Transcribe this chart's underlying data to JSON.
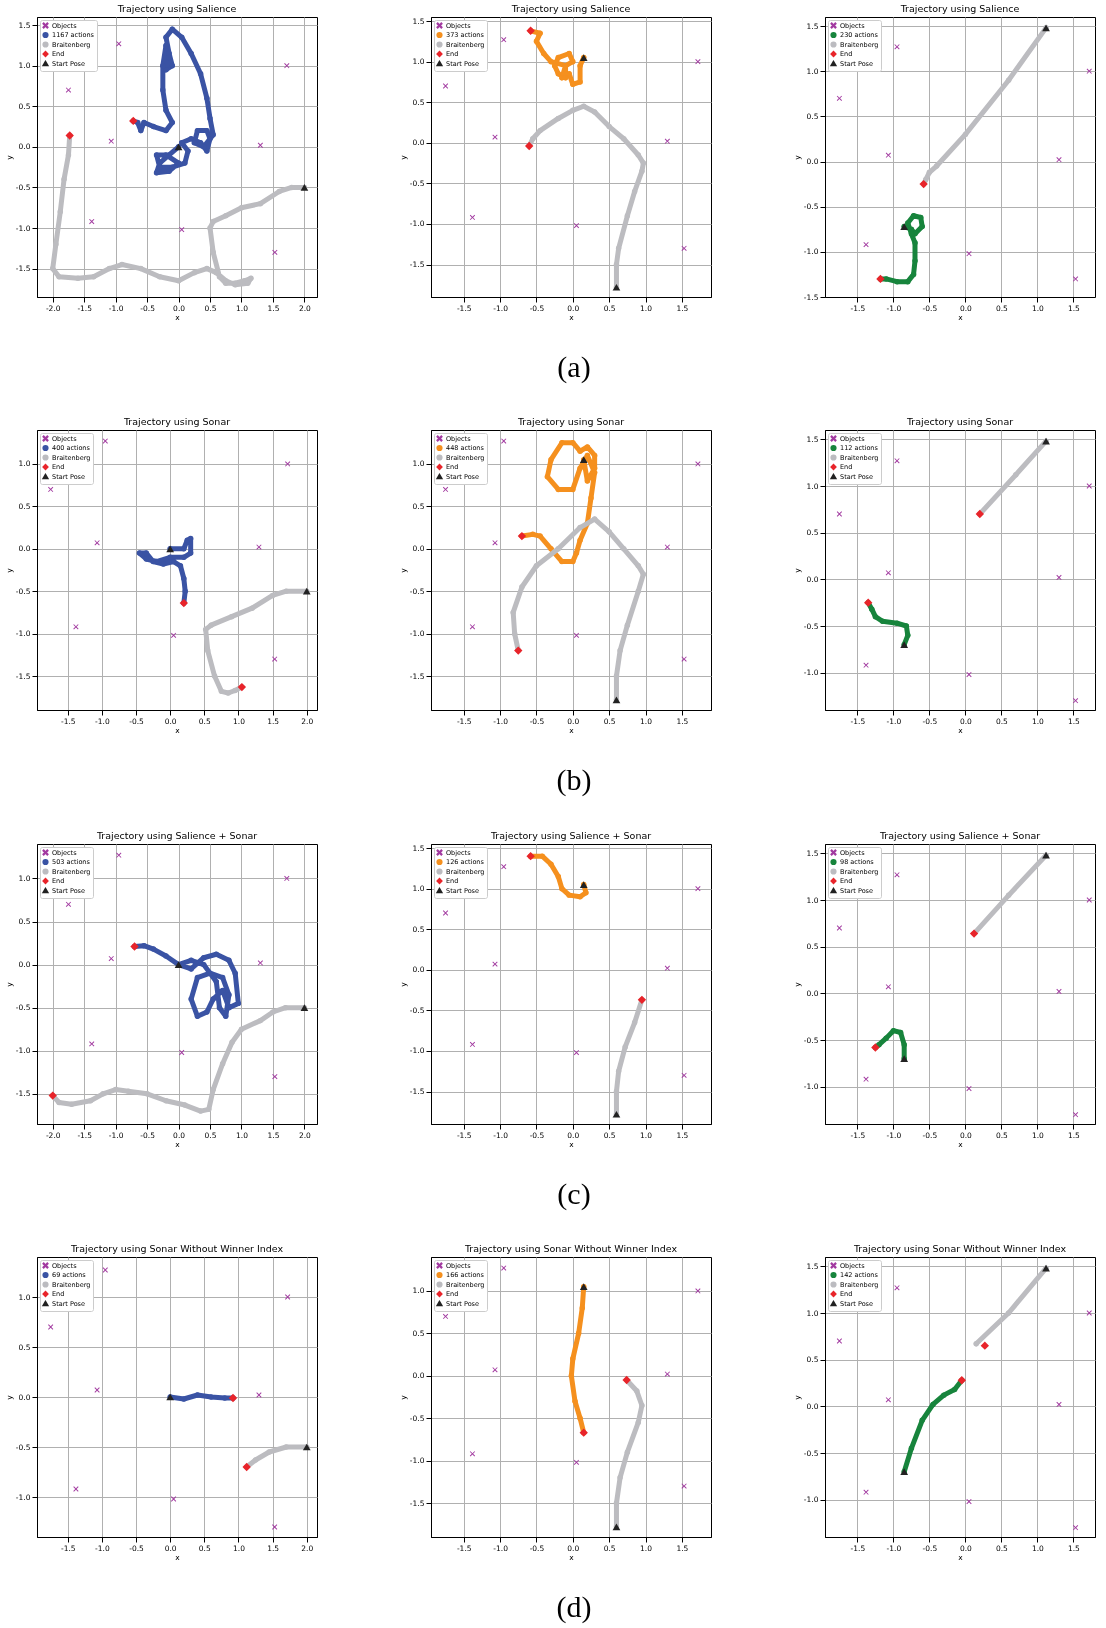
{
  "chart_data": [
    {
      "type": "scatter",
      "title": "Trajectory using Salience",
      "xlabel": "x",
      "ylabel": "y",
      "grid": true,
      "legend": "top left",
      "xlim": [
        -2.25,
        2.2
      ],
      "ylim": [
        -1.85,
        1.6
      ],
      "xticks": [
        {
          "value": -2,
          "label": "-2.0"
        },
        -1.5,
        {
          "value": -1,
          "label": "-1.0"
        },
        -0.5,
        {
          "value": 0,
          "label": "0.0"
        },
        0.5,
        {
          "value": 1,
          "label": "1.0"
        },
        1.5,
        {
          "value": 2,
          "label": "2.0"
        }
      ],
      "yticks": [
        -1.5,
        {
          "value": -1,
          "label": "-1.0"
        },
        -0.5,
        {
          "value": 0,
          "label": "0.0"
        },
        0.5,
        {
          "value": 1,
          "label": "1.0"
        },
        1.5
      ],
      "series": [
        {
          "name": "Objects",
          "type": "scatter",
          "marker": "cross",
          "color": "#a23aa0",
          "x": [
            -1.75,
            -0.95,
            -1.07,
            -1.38,
            0.05,
            1.3,
            1.72,
            1.53
          ],
          "values": [
            0.7,
            1.27,
            0.07,
            -0.92,
            -1.02,
            0.02,
            1.0,
            -1.3
          ]
        },
        {
          "name": "1167 actions",
          "type": "line",
          "color": "#3a53a4",
          "x": [
            0,
            -0.15,
            -0.3,
            -0.35,
            -0.15,
            0,
            -0.2,
            -0.35,
            -0.3,
            -0.1,
            0.1,
            0.15,
            0.05,
            0.2,
            0.35,
            0.45,
            0.5,
            0.45,
            0.3,
            0.25,
            0.4,
            0.55,
            0.5,
            0.45,
            0.35,
            0.2,
            0.05,
            -0.1,
            -0.2,
            -0.15,
            -0.1,
            -0.2,
            -0.15,
            -0.2,
            -0.25,
            -0.25,
            -0.2,
            -0.1,
            -0.2,
            -0.4,
            -0.55,
            -0.6,
            -0.65,
            -0.72
          ],
          "values": [
            0,
            -0.1,
            -0.2,
            -0.32,
            -0.3,
            -0.2,
            -0.1,
            -0.1,
            -0.25,
            -0.25,
            -0.2,
            -0.05,
            0.05,
            0.1,
            0.05,
            -0.05,
            0.1,
            0.2,
            0.2,
            0.05,
            0,
            0.15,
            0.35,
            0.6,
            0.9,
            1.15,
            1.35,
            1.45,
            1.35,
            1.15,
            1.0,
            0.95,
            1.1,
            1.25,
            1.0,
            0.7,
            0.45,
            0.3,
            0.2,
            0.25,
            0.3,
            0.2,
            0.3,
            0.32
          ]
        },
        {
          "name": "Braitenberg",
          "type": "line",
          "color": "#bcbcc0",
          "x": [
            2,
            1.8,
            1.6,
            1.3,
            1.0,
            0.75,
            0.55,
            0.5,
            0.55,
            0.65,
            0.75,
            0.9,
            1.05,
            1.15,
            1.1,
            0.9,
            0.75,
            0.6,
            0.45,
            0.25,
            0,
            -0.3,
            -0.6,
            -0.9,
            -1.1,
            -1.35,
            -1.6,
            -1.9,
            -2.0,
            -1.95,
            -1.88,
            -1.82,
            -1.75,
            -1.73
          ],
          "values": [
            -0.5,
            -0.5,
            -0.55,
            -0.7,
            -0.75,
            -0.85,
            -0.92,
            -1.0,
            -1.3,
            -1.6,
            -1.68,
            -1.68,
            -1.65,
            -1.62,
            -1.68,
            -1.7,
            -1.65,
            -1.55,
            -1.5,
            -1.55,
            -1.65,
            -1.6,
            -1.5,
            -1.45,
            -1.5,
            -1.6,
            -1.62,
            -1.6,
            -1.5,
            -1.2,
            -0.8,
            -0.4,
            -0.1,
            0.14
          ]
        },
        {
          "name": "End",
          "type": "scatter",
          "marker": "diamond",
          "color": "#e8242a",
          "x": [
            -0.72,
            -1.73
          ],
          "values": [
            0.32,
            0.14
          ]
        },
        {
          "name": "Start Pose",
          "type": "scatter",
          "marker": "triangle",
          "color": "#222222",
          "x": [
            0,
            2
          ],
          "values": [
            0,
            -0.5
          ]
        }
      ]
    },
    {
      "type": "scatter",
      "title": "Trajectory using Salience",
      "xlabel": "x",
      "ylabel": "y",
      "grid": true,
      "legend": "top left",
      "xlim": [
        -1.95,
        1.9
      ],
      "ylim": [
        -1.9,
        1.55
      ],
      "xticks": [
        -1.5,
        {
          "value": -1,
          "label": "-1.0"
        },
        -0.5,
        {
          "value": 0,
          "label": "0.0"
        },
        0.5,
        {
          "value": 1,
          "label": "1.0"
        },
        1.5
      ],
      "yticks": [
        -1.5,
        {
          "value": -1,
          "label": "-1.0"
        },
        -0.5,
        {
          "value": 0,
          "label": "0.0"
        },
        0.5,
        {
          "value": 1,
          "label": "1.0"
        },
        1.5
      ],
      "annotations": [
        "(a)"
      ],
      "series": [
        {
          "name": "Objects",
          "type": "scatter",
          "marker": "cross",
          "color": "#a23aa0",
          "x": [
            -1.75,
            -0.95,
            -1.07,
            -1.38,
            0.05,
            1.3,
            1.72,
            1.53
          ],
          "values": [
            0.7,
            1.27,
            0.07,
            -0.92,
            -1.02,
            0.02,
            1.0,
            -1.3
          ]
        },
        {
          "name": "373 actions",
          "type": "line",
          "color": "#f5901e",
          "x": [
            0.15,
            0.1,
            0.1,
            0,
            -0.05,
            -0.15,
            -0.1,
            0,
            -0.05,
            -0.2,
            -0.25,
            -0.2,
            -0.1,
            -0.1,
            -0.3,
            -0.4,
            -0.5,
            -0.45,
            -0.58
          ],
          "values": [
            1.05,
            0.95,
            0.75,
            0.72,
            0.85,
            0.8,
            0.95,
            1.0,
            1.1,
            1.05,
            0.95,
            0.85,
            0.8,
            0.95,
            1.0,
            1.1,
            1.25,
            1.35,
            1.38
          ]
        },
        {
          "name": "Braitenberg",
          "type": "line",
          "color": "#bcbcc0",
          "x": [
            0.6,
            0.6,
            0.63,
            0.75,
            0.85,
            0.95,
            0.97,
            0.9,
            0.7,
            0.5,
            0.3,
            0.15,
            0,
            -0.2,
            -0.45,
            -0.55,
            -0.6
          ],
          "values": [
            -1.78,
            -1.5,
            -1.3,
            -0.9,
            -0.6,
            -0.35,
            -0.25,
            -0.15,
            0.05,
            0.2,
            0.38,
            0.45,
            0.4,
            0.3,
            0.15,
            0.05,
            -0.04
          ]
        },
        {
          "name": "End",
          "type": "scatter",
          "marker": "diamond",
          "color": "#e8242a",
          "x": [
            -0.58,
            -0.6
          ],
          "values": [
            1.38,
            -0.04
          ]
        },
        {
          "name": "Start Pose",
          "type": "scatter",
          "marker": "triangle",
          "color": "#222222",
          "x": [
            0.15,
            0.6
          ],
          "values": [
            1.05,
            -1.78
          ]
        }
      ]
    },
    {
      "type": "scatter",
      "title": "Trajectory using Salience",
      "xlabel": "x",
      "ylabel": "y",
      "grid": true,
      "legend": "top left",
      "xlim": [
        -1.95,
        1.8
      ],
      "ylim": [
        -1.5,
        1.6
      ],
      "xticks": [
        -1.5,
        {
          "value": -1,
          "label": "-1.0"
        },
        -0.5,
        {
          "value": 0,
          "label": "0.0"
        },
        0.5,
        {
          "value": 1,
          "label": "1.0"
        },
        1.5
      ],
      "yticks": [
        -1.5,
        {
          "value": -1,
          "label": "-1.0"
        },
        -0.5,
        {
          "value": 0,
          "label": "0.0"
        },
        0.5,
        {
          "value": 1,
          "label": "1.0"
        },
        1.5
      ],
      "series": [
        {
          "name": "Objects",
          "type": "scatter",
          "marker": "cross",
          "color": "#a23aa0",
          "x": [
            -1.75,
            -0.95,
            -1.07,
            -1.38,
            0.05,
            1.3,
            1.72,
            1.53
          ],
          "values": [
            0.7,
            1.27,
            0.07,
            -0.92,
            -1.02,
            0.02,
            1.0,
            -1.3
          ]
        },
        {
          "name": "230 actions",
          "type": "line",
          "color": "#17843c",
          "x": [
            -0.85,
            -0.75,
            -0.7,
            -0.6,
            -0.62,
            -0.72,
            -0.8,
            -0.75,
            -0.7,
            -0.7,
            -0.72,
            -0.8,
            -0.95,
            -1.1,
            -1.18
          ],
          "values": [
            -0.72,
            -0.75,
            -0.8,
            -0.72,
            -0.62,
            -0.6,
            -0.68,
            -0.8,
            -0.9,
            -1.1,
            -1.25,
            -1.33,
            -1.33,
            -1.3,
            -1.3
          ]
        },
        {
          "name": "Braitenberg",
          "type": "line",
          "color": "#bcbcc0",
          "x": [
            1.12,
            0.6,
            0,
            -0.4,
            -0.5,
            -0.55,
            -0.58
          ],
          "values": [
            1.48,
            0.9,
            0.3,
            -0.05,
            -0.12,
            -0.2,
            -0.25
          ]
        },
        {
          "name": "End",
          "type": "scatter",
          "marker": "diamond",
          "color": "#e8242a",
          "x": [
            -1.18,
            -0.58
          ],
          "values": [
            -1.3,
            -0.25
          ]
        },
        {
          "name": "Start Pose",
          "type": "scatter",
          "marker": "triangle",
          "color": "#222222",
          "x": [
            -0.85,
            1.12
          ],
          "values": [
            -0.72,
            1.48
          ]
        }
      ]
    },
    {
      "type": "scatter",
      "title": "Trajectory using Sonar",
      "xlabel": "x",
      "ylabel": "y",
      "grid": true,
      "legend": "top left",
      "xlim": [
        -1.95,
        2.15
      ],
      "ylim": [
        -1.9,
        1.4
      ],
      "xticks": [
        -1.5,
        {
          "value": -1,
          "label": "-1.0"
        },
        -0.5,
        {
          "value": 0,
          "label": "0.0"
        },
        0.5,
        {
          "value": 1,
          "label": "1.0"
        },
        1.5,
        {
          "value": 2,
          "label": "2.0"
        }
      ],
      "yticks": [
        -1.5,
        {
          "value": -1,
          "label": "-1.0"
        },
        -0.5,
        {
          "value": 0,
          "label": "0.0"
        },
        0.5,
        {
          "value": 1,
          "label": "1.0"
        }
      ],
      "series": [
        {
          "name": "Objects",
          "type": "scatter",
          "marker": "cross",
          "color": "#a23aa0",
          "x": [
            -1.75,
            -0.95,
            -1.07,
            -1.38,
            0.05,
            1.3,
            1.72,
            1.53
          ],
          "values": [
            0.7,
            1.27,
            0.07,
            -0.92,
            -1.02,
            0.02,
            1.0,
            -1.3
          ]
        },
        {
          "name": "400 actions",
          "type": "line",
          "color": "#3a53a4",
          "x": [
            0,
            0.2,
            0.25,
            0.3,
            0.3,
            0.2,
            0,
            -0.2,
            -0.35,
            -0.45,
            -0.35,
            -0.25,
            -0.1,
            0.05,
            0.15,
            0.2,
            0.22,
            0.2
          ],
          "values": [
            0,
            0,
            0.1,
            0.12,
            -0.05,
            -0.1,
            -0.1,
            -0.15,
            -0.12,
            -0.05,
            -0.05,
            -0.15,
            -0.18,
            -0.15,
            -0.2,
            -0.35,
            -0.5,
            -0.64
          ]
        },
        {
          "name": "Braitenberg",
          "type": "line",
          "color": "#bcbcc0",
          "x": [
            2,
            1.7,
            1.5,
            1.2,
            0.9,
            0.6,
            0.52,
            0.55,
            0.65,
            0.75,
            0.85,
            0.95,
            1.05
          ],
          "values": [
            -0.5,
            -0.5,
            -0.55,
            -0.7,
            -0.8,
            -0.9,
            -0.95,
            -1.2,
            -1.5,
            -1.68,
            -1.7,
            -1.67,
            -1.63
          ]
        },
        {
          "name": "End",
          "type": "scatter",
          "marker": "diamond",
          "color": "#e8242a",
          "x": [
            0.2,
            1.05
          ],
          "values": [
            -0.64,
            -1.63
          ]
        },
        {
          "name": "Start Pose",
          "type": "scatter",
          "marker": "triangle",
          "color": "#222222",
          "x": [
            0,
            2
          ],
          "values": [
            0,
            -0.5
          ]
        }
      ]
    },
    {
      "type": "scatter",
      "title": "Trajectory using Sonar",
      "xlabel": "x",
      "ylabel": "y",
      "grid": true,
      "legend": "top left",
      "xlim": [
        -1.95,
        1.9
      ],
      "ylim": [
        -1.9,
        1.4
      ],
      "xticks": [
        -1.5,
        {
          "value": -1,
          "label": "-1.0"
        },
        -0.5,
        {
          "value": 0,
          "label": "0.0"
        },
        0.5,
        {
          "value": 1,
          "label": "1.0"
        },
        1.5
      ],
      "yticks": [
        -1.5,
        {
          "value": -1,
          "label": "-1.0"
        },
        -0.5,
        {
          "value": 0,
          "label": "0.0"
        },
        0.5,
        {
          "value": 1,
          "label": "1.0"
        }
      ],
      "annotations": [
        "(b)"
      ],
      "series": [
        {
          "name": "Objects",
          "type": "scatter",
          "marker": "cross",
          "color": "#a23aa0",
          "x": [
            -1.75,
            -0.95,
            -1.07,
            -1.38,
            0.05,
            1.3,
            1.72,
            1.53
          ],
          "values": [
            0.7,
            1.27,
            0.07,
            -0.92,
            -1.02,
            0.02,
            1.0,
            -1.3
          ]
        },
        {
          "name": "448 actions",
          "type": "line",
          "color": "#f5901e",
          "x": [
            0.15,
            0.2,
            0.3,
            0.3,
            0.2,
            0.1,
            0,
            -0.15,
            -0.3,
            -0.35,
            -0.2,
            0,
            0.1,
            0.2,
            0.3,
            0.25,
            0.2,
            0.1,
            0.05,
            0,
            -0.15,
            -0.3,
            -0.45,
            -0.55,
            -0.7
          ],
          "values": [
            1.05,
            0.8,
            0.95,
            1.1,
            1.2,
            1.15,
            1.25,
            1.25,
            1.05,
            0.85,
            0.7,
            0.7,
            0.95,
            1.1,
            0.9,
            0.6,
            0.3,
            0.1,
            -0.05,
            -0.15,
            -0.15,
            0,
            0.15,
            0.17,
            0.15
          ]
        },
        {
          "name": "Braitenberg",
          "type": "line",
          "color": "#bcbcc0",
          "x": [
            0.6,
            0.6,
            0.65,
            0.75,
            0.9,
            0.97,
            0.9,
            0.7,
            0.5,
            0.3,
            0.1,
            -0.2,
            -0.5,
            -0.7,
            -0.82,
            -0.8,
            -0.75
          ],
          "values": [
            -1.78,
            -1.5,
            -1.2,
            -0.9,
            -0.5,
            -0.3,
            -0.2,
            0,
            0.2,
            0.35,
            0.25,
            0,
            -0.2,
            -0.45,
            -0.75,
            -1.0,
            -1.2
          ]
        },
        {
          "name": "End",
          "type": "scatter",
          "marker": "diamond",
          "color": "#e8242a",
          "x": [
            -0.7,
            -0.75
          ],
          "values": [
            0.15,
            -1.2
          ]
        },
        {
          "name": "Start Pose",
          "type": "scatter",
          "marker": "triangle",
          "color": "#222222",
          "x": [
            0.15,
            0.6
          ],
          "values": [
            1.05,
            -1.78
          ]
        }
      ]
    },
    {
      "type": "scatter",
      "title": "Trajectory using Sonar",
      "xlabel": "x",
      "ylabel": "y",
      "grid": true,
      "legend": "top left",
      "xlim": [
        -1.95,
        1.8
      ],
      "ylim": [
        -1.4,
        1.6
      ],
      "xticks": [
        -1.5,
        {
          "value": -1,
          "label": "-1.0"
        },
        -0.5,
        {
          "value": 0,
          "label": "0.0"
        },
        0.5,
        {
          "value": 1,
          "label": "1.0"
        },
        1.5
      ],
      "yticks": [
        {
          "value": -1,
          "label": "-1.0"
        },
        -0.5,
        {
          "value": 0,
          "label": "0.0"
        },
        0.5,
        {
          "value": 1,
          "label": "1.0"
        },
        1.5
      ],
      "series": [
        {
          "name": "Objects",
          "type": "scatter",
          "marker": "cross",
          "color": "#a23aa0",
          "x": [
            -1.75,
            -0.95,
            -1.07,
            -1.38,
            0.05,
            1.3,
            1.72,
            1.53
          ],
          "values": [
            0.7,
            1.27,
            0.07,
            -0.92,
            -1.02,
            0.02,
            1.0,
            -1.3
          ]
        },
        {
          "name": "112 actions",
          "type": "line",
          "color": "#17843c",
          "x": [
            -0.85,
            -0.8,
            -0.82,
            -0.95,
            -1.15,
            -1.25,
            -1.3,
            -1.35
          ],
          "values": [
            -0.7,
            -0.6,
            -0.5,
            -0.47,
            -0.45,
            -0.4,
            -0.32,
            -0.25
          ]
        },
        {
          "name": "Braitenberg",
          "type": "line",
          "color": "#bcbcc0",
          "x": [
            1.12,
            0.7,
            0.2
          ],
          "values": [
            1.48,
            1.12,
            0.7
          ]
        },
        {
          "name": "End",
          "type": "scatter",
          "marker": "diamond",
          "color": "#e8242a",
          "x": [
            -1.35,
            0.2
          ],
          "values": [
            -0.25,
            0.7
          ]
        },
        {
          "name": "Start Pose",
          "type": "scatter",
          "marker": "triangle",
          "color": "#222222",
          "x": [
            -0.85,
            1.12
          ],
          "values": [
            -0.7,
            1.48
          ]
        }
      ]
    },
    {
      "type": "scatter",
      "title": "Trajectory using Salience + Sonar",
      "xlabel": "x",
      "ylabel": "y",
      "grid": true,
      "legend": "top left",
      "xlim": [
        -2.25,
        2.2
      ],
      "ylim": [
        -1.85,
        1.4
      ],
      "xticks": [
        {
          "value": -2,
          "label": "-2.0"
        },
        -1.5,
        {
          "value": -1,
          "label": "-1.0"
        },
        -0.5,
        {
          "value": 0,
          "label": "0.0"
        },
        0.5,
        {
          "value": 1,
          "label": "1.0"
        },
        1.5,
        {
          "value": 2,
          "label": "2.0"
        }
      ],
      "yticks": [
        -1.5,
        {
          "value": -1,
          "label": "-1.0"
        },
        -0.5,
        {
          "value": 0,
          "label": "0.0"
        },
        0.5,
        {
          "value": 1,
          "label": "1.0"
        }
      ],
      "series": [
        {
          "name": "Objects",
          "type": "scatter",
          "marker": "cross",
          "color": "#a23aa0",
          "x": [
            -1.75,
            -0.95,
            -1.07,
            -1.38,
            0.05,
            1.3,
            1.72,
            1.53
          ],
          "values": [
            0.7,
            1.27,
            0.07,
            -0.92,
            -1.02,
            0.02,
            1.0,
            -1.3
          ]
        },
        {
          "name": "503 actions",
          "type": "line",
          "color": "#3a53a4",
          "x": [
            0,
            0.2,
            0.4,
            0.6,
            0.8,
            0.9,
            0.95,
            0.8,
            0.7,
            0.55,
            0.45,
            0.3,
            0.2,
            0.3,
            0.5,
            0.7,
            0.8,
            0.75,
            0.65,
            0.6,
            0.4,
            0.2,
            0,
            -0.2,
            -0.4,
            -0.55,
            -0.7
          ],
          "values": [
            0,
            -0.05,
            0.08,
            0.12,
            0.05,
            -0.1,
            -0.45,
            -0.5,
            -0.3,
            -0.4,
            -0.55,
            -0.6,
            -0.4,
            -0.15,
            -0.1,
            -0.15,
            -0.35,
            -0.6,
            -0.5,
            -0.2,
            0,
            0.05,
            0,
            0.1,
            0.18,
            0.22,
            0.21
          ]
        },
        {
          "name": "Braitenberg",
          "type": "line",
          "color": "#bcbcc0",
          "x": [
            2,
            1.7,
            1.5,
            1.3,
            1.0,
            0.85,
            0.7,
            0.55,
            0.48,
            0.35,
            0.1,
            -0.2,
            -0.5,
            -0.8,
            -1.0,
            -1.2,
            -1.4,
            -1.7,
            -1.9,
            -2.0
          ],
          "values": [
            -0.5,
            -0.5,
            -0.55,
            -0.65,
            -0.75,
            -0.9,
            -1.15,
            -1.45,
            -1.68,
            -1.7,
            -1.63,
            -1.58,
            -1.5,
            -1.47,
            -1.45,
            -1.5,
            -1.58,
            -1.62,
            -1.6,
            -1.52
          ]
        },
        {
          "name": "End",
          "type": "scatter",
          "marker": "diamond",
          "color": "#e8242a",
          "x": [
            -0.7,
            -2.0
          ],
          "values": [
            0.21,
            -1.52
          ]
        },
        {
          "name": "Start Pose",
          "type": "scatter",
          "marker": "triangle",
          "color": "#222222",
          "x": [
            0,
            2
          ],
          "values": [
            0,
            -0.5
          ]
        }
      ]
    },
    {
      "type": "scatter",
      "title": "Trajectory using Salience + Sonar",
      "xlabel": "x",
      "ylabel": "y",
      "grid": true,
      "legend": "top left",
      "xlim": [
        -1.95,
        1.9
      ],
      "ylim": [
        -1.9,
        1.55
      ],
      "xticks": [
        -1.5,
        {
          "value": -1,
          "label": "-1.0"
        },
        -0.5,
        {
          "value": 0,
          "label": "0.0"
        },
        0.5,
        {
          "value": 1,
          "label": "1.0"
        },
        1.5
      ],
      "yticks": [
        -1.5,
        {
          "value": -1,
          "label": "-1.0"
        },
        -0.5,
        {
          "value": 0,
          "label": "0.0"
        },
        0.5,
        {
          "value": 1,
          "label": "1.0"
        },
        1.5
      ],
      "annotations": [
        "(c)"
      ],
      "series": [
        {
          "name": "Objects",
          "type": "scatter",
          "marker": "cross",
          "color": "#a23aa0",
          "x": [
            -1.75,
            -0.95,
            -1.07,
            -1.38,
            0.05,
            1.3,
            1.72,
            1.53
          ],
          "values": [
            0.7,
            1.27,
            0.07,
            -0.92,
            -1.02,
            0.02,
            1.0,
            -1.3
          ]
        },
        {
          "name": "126 actions",
          "type": "line",
          "color": "#f5901e",
          "x": [
            0.15,
            0.18,
            0.1,
            -0.05,
            -0.15,
            -0.2,
            -0.3,
            -0.42,
            -0.58
          ],
          "values": [
            1.05,
            0.95,
            0.9,
            0.92,
            1.0,
            1.15,
            1.3,
            1.4,
            1.4
          ]
        },
        {
          "name": "Braitenberg",
          "type": "line",
          "color": "#bcbcc0",
          "x": [
            0.6,
            0.6,
            0.63,
            0.72,
            0.85,
            0.95
          ],
          "values": [
            -1.78,
            -1.5,
            -1.25,
            -0.95,
            -0.65,
            -0.37
          ]
        },
        {
          "name": "End",
          "type": "scatter",
          "marker": "diamond",
          "color": "#e8242a",
          "x": [
            -0.58,
            0.95
          ],
          "values": [
            1.4,
            -0.37
          ]
        },
        {
          "name": "Start Pose",
          "type": "scatter",
          "marker": "triangle",
          "color": "#222222",
          "x": [
            0.15,
            0.6
          ],
          "values": [
            1.05,
            -1.78
          ]
        }
      ]
    },
    {
      "type": "scatter",
      "title": "Trajectory using Salience + Sonar",
      "xlabel": "x",
      "ylabel": "y",
      "grid": true,
      "legend": "top left",
      "xlim": [
        -1.95,
        1.8
      ],
      "ylim": [
        -1.4,
        1.6
      ],
      "xticks": [
        -1.5,
        {
          "value": -1,
          "label": "-1.0"
        },
        -0.5,
        {
          "value": 0,
          "label": "0.0"
        },
        0.5,
        {
          "value": 1,
          "label": "1.0"
        },
        1.5
      ],
      "yticks": [
        {
          "value": -1,
          "label": "-1.0"
        },
        -0.5,
        {
          "value": 0,
          "label": "0.0"
        },
        0.5,
        {
          "value": 1,
          "label": "1.0"
        },
        1.5
      ],
      "series": [
        {
          "name": "Objects",
          "type": "scatter",
          "marker": "cross",
          "color": "#a23aa0",
          "x": [
            -1.75,
            -0.95,
            -1.07,
            -1.38,
            0.05,
            1.3,
            1.72,
            1.53
          ],
          "values": [
            0.7,
            1.27,
            0.07,
            -0.92,
            -1.02,
            0.02,
            1.0,
            -1.3
          ]
        },
        {
          "name": "98 actions",
          "type": "line",
          "color": "#17843c",
          "x": [
            -0.85,
            -0.85,
            -0.9,
            -1.0,
            -1.1,
            -1.2,
            -1.25
          ],
          "values": [
            -0.7,
            -0.55,
            -0.42,
            -0.4,
            -0.48,
            -0.55,
            -0.58
          ]
        },
        {
          "name": "Braitenberg",
          "type": "line",
          "color": "#bcbcc0",
          "x": [
            1.12,
            0.6,
            0.12
          ],
          "values": [
            1.48,
            1.05,
            0.64
          ]
        },
        {
          "name": "End",
          "type": "scatter",
          "marker": "diamond",
          "color": "#e8242a",
          "x": [
            -1.25,
            0.12
          ],
          "values": [
            -0.58,
            0.64
          ]
        },
        {
          "name": "Start Pose",
          "type": "scatter",
          "marker": "triangle",
          "color": "#222222",
          "x": [
            -0.85,
            1.12
          ],
          "values": [
            -0.7,
            1.48
          ]
        }
      ]
    },
    {
      "type": "scatter",
      "title": "Trajectory using Sonar Without Winner Index",
      "xlabel": "x",
      "ylabel": "y",
      "grid": true,
      "legend": "top left",
      "xlim": [
        -1.95,
        2.15
      ],
      "ylim": [
        -1.4,
        1.4
      ],
      "xticks": [
        -1.5,
        {
          "value": -1,
          "label": "-1.0"
        },
        -0.5,
        {
          "value": 0,
          "label": "0.0"
        },
        0.5,
        {
          "value": 1,
          "label": "1.0"
        },
        1.5,
        {
          "value": 2,
          "label": "2.0"
        }
      ],
      "yticks": [
        {
          "value": -1,
          "label": "-1.0"
        },
        -0.5,
        {
          "value": 0,
          "label": "0.0"
        },
        0.5,
        {
          "value": 1,
          "label": "1.0"
        }
      ],
      "series": [
        {
          "name": "Objects",
          "type": "scatter",
          "marker": "cross",
          "color": "#a23aa0",
          "x": [
            -1.75,
            -0.95,
            -1.07,
            -1.38,
            0.05,
            1.3,
            1.72,
            1.53
          ],
          "values": [
            0.7,
            1.27,
            0.07,
            -0.92,
            -1.02,
            0.02,
            1.0,
            -1.3
          ]
        },
        {
          "name": "69 actions",
          "type": "line",
          "color": "#3a53a4",
          "x": [
            0,
            0.2,
            0.4,
            0.6,
            0.8,
            0.92
          ],
          "values": [
            0,
            -0.02,
            0.02,
            0,
            -0.01,
            -0.01
          ]
        },
        {
          "name": "Braitenberg",
          "type": "line",
          "color": "#bcbcc0",
          "x": [
            2,
            1.7,
            1.45,
            1.25,
            1.12
          ],
          "values": [
            -0.5,
            -0.5,
            -0.55,
            -0.63,
            -0.7
          ]
        },
        {
          "name": "End",
          "type": "scatter",
          "marker": "diamond",
          "color": "#e8242a",
          "x": [
            0.92,
            1.12
          ],
          "values": [
            -0.01,
            -0.7
          ]
        },
        {
          "name": "Start Pose",
          "type": "scatter",
          "marker": "triangle",
          "color": "#222222",
          "x": [
            0,
            2
          ],
          "values": [
            0,
            -0.5
          ]
        }
      ]
    },
    {
      "type": "scatter",
      "title": "Trajectory using Sonar Without Winner Index",
      "xlabel": "x",
      "ylabel": "y",
      "grid": true,
      "legend": "top left",
      "xlim": [
        -1.95,
        1.9
      ],
      "ylim": [
        -1.9,
        1.4
      ],
      "xticks": [
        -1.5,
        {
          "value": -1,
          "label": "-1.0"
        },
        -0.5,
        {
          "value": 0,
          "label": "0.0"
        },
        0.5,
        {
          "value": 1,
          "label": "1.0"
        },
        1.5
      ],
      "yticks": [
        -1.5,
        {
          "value": -1,
          "label": "-1.0"
        },
        -0.5,
        {
          "value": 0,
          "label": "0.0"
        },
        0.5,
        {
          "value": 1,
          "label": "1.0"
        }
      ],
      "annotations": [
        "(d)"
      ],
      "series": [
        {
          "name": "Objects",
          "type": "scatter",
          "marker": "cross",
          "color": "#a23aa0",
          "x": [
            -1.75,
            -0.95,
            -1.07,
            -1.38,
            0.05,
            1.3,
            1.72,
            1.53
          ],
          "values": [
            0.7,
            1.27,
            0.07,
            -0.92,
            -1.02,
            0.02,
            1.0,
            -1.3
          ]
        },
        {
          "name": "166 actions",
          "type": "line",
          "color": "#f5901e",
          "x": [
            0.15,
            0.13,
            0.08,
            0,
            -0.02,
            0.03,
            0.1,
            0.15
          ],
          "values": [
            1.05,
            0.8,
            0.5,
            0.2,
            0,
            -0.3,
            -0.5,
            -0.67
          ]
        },
        {
          "name": "Braitenberg",
          "type": "line",
          "color": "#bcbcc0",
          "x": [
            0.6,
            0.6,
            0.65,
            0.75,
            0.9,
            0.95,
            0.88,
            0.74
          ],
          "values": [
            -1.78,
            -1.5,
            -1.2,
            -0.9,
            -0.55,
            -0.35,
            -0.18,
            -0.05
          ]
        },
        {
          "name": "End",
          "type": "scatter",
          "marker": "diamond",
          "color": "#e8242a",
          "x": [
            0.15,
            0.74
          ],
          "values": [
            -0.67,
            -0.05
          ]
        },
        {
          "name": "Start Pose",
          "type": "scatter",
          "marker": "triangle",
          "color": "#222222",
          "x": [
            0.15,
            0.6
          ],
          "values": [
            1.05,
            -1.78
          ]
        }
      ]
    },
    {
      "type": "scatter",
      "title": "Trajectory using Sonar Without Winner Index",
      "xlabel": "x",
      "ylabel": "y",
      "grid": true,
      "legend": "top left",
      "xlim": [
        -1.95,
        1.8
      ],
      "ylim": [
        -1.4,
        1.6
      ],
      "xticks": [
        -1.5,
        {
          "value": -1,
          "label": "-1.0"
        },
        -0.5,
        {
          "value": 0,
          "label": "0.0"
        },
        0.5,
        {
          "value": 1,
          "label": "1.0"
        },
        1.5
      ],
      "yticks": [
        {
          "value": -1,
          "label": "-1.0"
        },
        -0.5,
        {
          "value": 0,
          "label": "0.0"
        },
        0.5,
        {
          "value": 1,
          "label": "1.0"
        },
        1.5
      ],
      "series": [
        {
          "name": "Objects",
          "type": "scatter",
          "marker": "cross",
          "color": "#a23aa0",
          "x": [
            -1.75,
            -0.95,
            -1.07,
            -1.38,
            0.05,
            1.3,
            1.72,
            1.53
          ],
          "values": [
            0.7,
            1.27,
            0.07,
            -0.92,
            -1.02,
            0.02,
            1.0,
            -1.3
          ]
        },
        {
          "name": "142 actions",
          "type": "line",
          "color": "#17843c",
          "x": [
            -0.85,
            -0.75,
            -0.6,
            -0.45,
            -0.3,
            -0.15,
            -0.05
          ],
          "values": [
            -0.7,
            -0.45,
            -0.15,
            0.02,
            0.12,
            0.18,
            0.28
          ]
        },
        {
          "name": "Braitenberg",
          "type": "line",
          "color": "#bcbcc0",
          "x": [
            1.12,
            0.6,
            0.15
          ],
          "values": [
            1.48,
            1.0,
            0.67
          ]
        },
        {
          "name": "End",
          "type": "scatter",
          "marker": "diamond",
          "color": "#e8242a",
          "x": [
            -0.05,
            0.27
          ],
          "values": [
            0.28,
            0.65
          ]
        },
        {
          "name": "Start Pose",
          "type": "scatter",
          "marker": "triangle",
          "color": "#222222",
          "x": [
            -0.85,
            1.12
          ],
          "values": [
            -0.7,
            1.48
          ]
        }
      ]
    }
  ]
}
